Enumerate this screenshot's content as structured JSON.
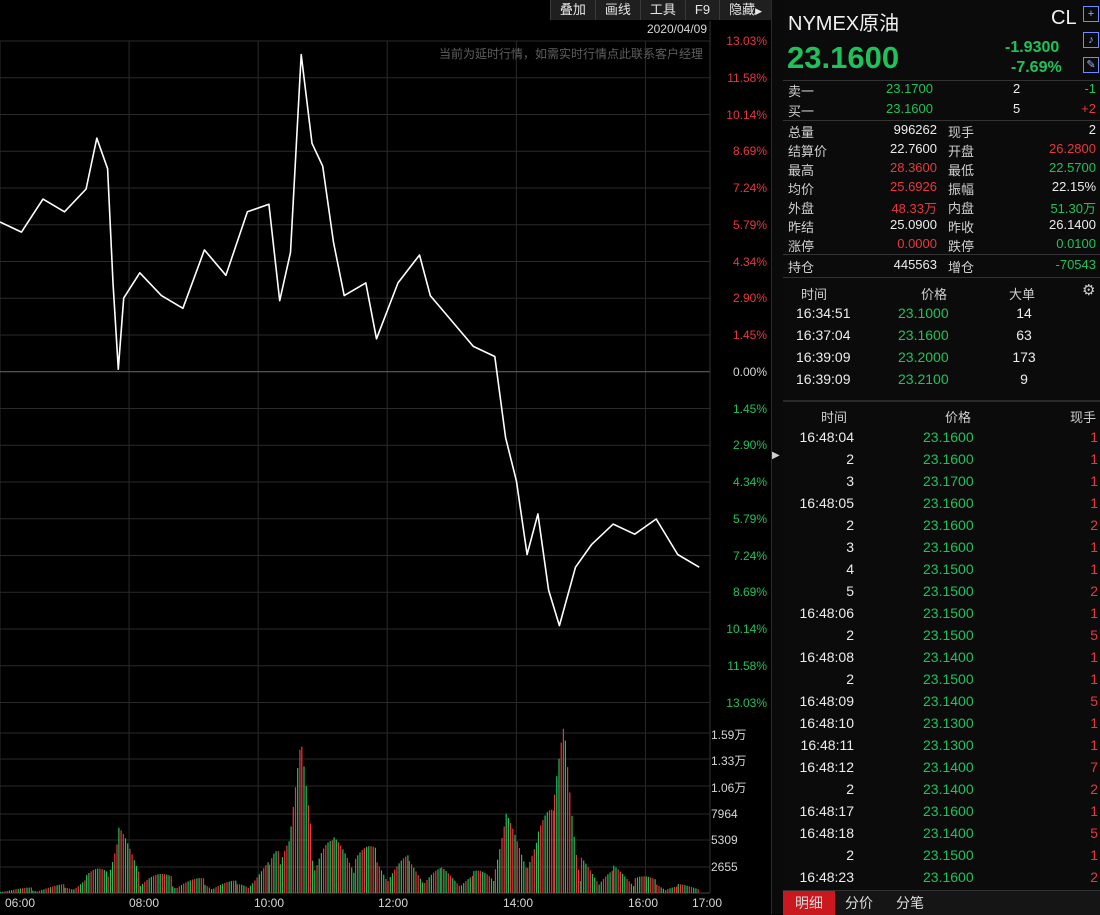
{
  "toolbar": {
    "overlay": "叠加",
    "draw": "画线",
    "tools": "工具",
    "f9": "F9",
    "hide": "隐藏"
  },
  "chart_header": {
    "date": "2020/04/09",
    "notice": "当前为延时行情，如需实时行情点此联系客户经理"
  },
  "price_axis": [
    {
      "label": "13.03%",
      "dir": "up"
    },
    {
      "label": "11.58%",
      "dir": "up"
    },
    {
      "label": "10.14%",
      "dir": "up"
    },
    {
      "label": "8.69%",
      "dir": "up"
    },
    {
      "label": "7.24%",
      "dir": "up"
    },
    {
      "label": "5.79%",
      "dir": "up"
    },
    {
      "label": "4.34%",
      "dir": "up"
    },
    {
      "label": "2.90%",
      "dir": "up"
    },
    {
      "label": "1.45%",
      "dir": "up"
    },
    {
      "label": "0.00%",
      "dir": "zero"
    },
    {
      "label": "1.45%",
      "dir": "dn"
    },
    {
      "label": "2.90%",
      "dir": "dn"
    },
    {
      "label": "4.34%",
      "dir": "dn"
    },
    {
      "label": "5.79%",
      "dir": "dn"
    },
    {
      "label": "7.24%",
      "dir": "dn"
    },
    {
      "label": "8.69%",
      "dir": "dn"
    },
    {
      "label": "10.14%",
      "dir": "dn"
    },
    {
      "label": "11.58%",
      "dir": "dn"
    },
    {
      "label": "13.03%",
      "dir": "dn"
    }
  ],
  "volume_axis": [
    "1.59万",
    "1.33万",
    "1.06万",
    "7964",
    "5309",
    "2655"
  ],
  "time_axis": [
    "06:00",
    "08:00",
    "10:00",
    "12:00",
    "14:00",
    "16:00",
    "17:00"
  ],
  "chart_data": {
    "type": "line",
    "x_unit": "time",
    "xlim": [
      "06:00",
      "17:00"
    ],
    "ylim_pct": [
      -13.03,
      13.03
    ],
    "prev_settle": 25.09,
    "price_change_pct": [
      {
        "x": "06:00",
        "y": 5.9
      },
      {
        "x": "06:20",
        "y": 5.5
      },
      {
        "x": "06:40",
        "y": 6.8
      },
      {
        "x": "07:00",
        "y": 6.3
      },
      {
        "x": "07:20",
        "y": 7.2
      },
      {
        "x": "07:30",
        "y": 9.2
      },
      {
        "x": "07:40",
        "y": 8.0
      },
      {
        "x": "07:45",
        "y": 3.5
      },
      {
        "x": "07:50",
        "y": 0.1
      },
      {
        "x": "07:55",
        "y": 2.9
      },
      {
        "x": "08:10",
        "y": 3.9
      },
      {
        "x": "08:30",
        "y": 3.0
      },
      {
        "x": "08:50",
        "y": 2.5
      },
      {
        "x": "09:10",
        "y": 4.8
      },
      {
        "x": "09:30",
        "y": 3.8
      },
      {
        "x": "09:50",
        "y": 6.3
      },
      {
        "x": "10:10",
        "y": 6.6
      },
      {
        "x": "10:20",
        "y": 2.8
      },
      {
        "x": "10:30",
        "y": 4.7
      },
      {
        "x": "10:40",
        "y": 12.5
      },
      {
        "x": "10:50",
        "y": 9.0
      },
      {
        "x": "11:00",
        "y": 8.1
      },
      {
        "x": "11:10",
        "y": 5.1
      },
      {
        "x": "11:20",
        "y": 3.0
      },
      {
        "x": "11:40",
        "y": 3.5
      },
      {
        "x": "11:50",
        "y": 1.3
      },
      {
        "x": "12:10",
        "y": 3.5
      },
      {
        "x": "12:30",
        "y": 4.6
      },
      {
        "x": "12:40",
        "y": 3.0
      },
      {
        "x": "13:00",
        "y": 2.0
      },
      {
        "x": "13:20",
        "y": 1.0
      },
      {
        "x": "13:40",
        "y": 0.6
      },
      {
        "x": "13:50",
        "y": -2.6
      },
      {
        "x": "14:00",
        "y": -4.3
      },
      {
        "x": "14:10",
        "y": -7.2
      },
      {
        "x": "14:20",
        "y": -5.6
      },
      {
        "x": "14:30",
        "y": -8.6
      },
      {
        "x": "14:40",
        "y": -10.0
      },
      {
        "x": "14:55",
        "y": -7.7
      },
      {
        "x": "15:10",
        "y": -6.8
      },
      {
        "x": "15:30",
        "y": -6.0
      },
      {
        "x": "15:50",
        "y": -6.4
      },
      {
        "x": "16:10",
        "y": -5.8
      },
      {
        "x": "16:30",
        "y": -7.2
      },
      {
        "x": "16:50",
        "y": -7.7
      }
    ],
    "volume": [
      {
        "x": "06:00",
        "v": 300
      },
      {
        "x": "06:30",
        "v": 500
      },
      {
        "x": "07:00",
        "v": 800
      },
      {
        "x": "07:20",
        "v": 1600
      },
      {
        "x": "07:40",
        "v": 3200
      },
      {
        "x": "07:50",
        "v": 6000
      },
      {
        "x": "08:10",
        "v": 2200
      },
      {
        "x": "08:40",
        "v": 1500
      },
      {
        "x": "09:10",
        "v": 1300
      },
      {
        "x": "09:40",
        "v": 1100
      },
      {
        "x": "10:10",
        "v": 3000
      },
      {
        "x": "10:20",
        "v": 8000
      },
      {
        "x": "10:30",
        "v": 6500
      },
      {
        "x": "10:40",
        "v": 14000
      },
      {
        "x": "10:50",
        "v": 8000
      },
      {
        "x": "11:10",
        "v": 5000
      },
      {
        "x": "11:30",
        "v": 4500
      },
      {
        "x": "11:50",
        "v": 4000
      },
      {
        "x": "12:20",
        "v": 3500
      },
      {
        "x": "12:50",
        "v": 2500
      },
      {
        "x": "13:20",
        "v": 2000
      },
      {
        "x": "13:40",
        "v": 3000
      },
      {
        "x": "13:50",
        "v": 7000
      },
      {
        "x": "14:10",
        "v": 4000
      },
      {
        "x": "14:20",
        "v": 5500
      },
      {
        "x": "14:35",
        "v": 9000
      },
      {
        "x": "14:45",
        "v": 16000
      },
      {
        "x": "15:00",
        "v": 3500
      },
      {
        "x": "15:30",
        "v": 2500
      },
      {
        "x": "15:50",
        "v": 1800
      },
      {
        "x": "16:10",
        "v": 1200
      },
      {
        "x": "16:30",
        "v": 800
      },
      {
        "x": "16:50",
        "v": 500
      }
    ]
  },
  "quote": {
    "name": "NYMEX原油",
    "code": "CL",
    "last": "23.1600",
    "change": "-1.9300",
    "change_pct": "-7.69%",
    "ask": {
      "label": "卖一",
      "price": "23.1700",
      "vol": "2",
      "delta": "-1"
    },
    "bid": {
      "label": "买一",
      "price": "23.1600",
      "vol": "5",
      "delta": "+2"
    },
    "stats": [
      {
        "l1": "总量",
        "v1": "996262",
        "c1": "white",
        "l2": "现手",
        "v2": "2",
        "c2": "white"
      },
      {
        "l1": "结算价",
        "v1": "22.7600",
        "c1": "white",
        "l2": "开盘",
        "v2": "26.2800",
        "c2": "red"
      },
      {
        "l1": "最高",
        "v1": "28.3600",
        "c1": "red",
        "l2": "最低",
        "v2": "22.5700",
        "c2": "green"
      },
      {
        "l1": "均价",
        "v1": "25.6926",
        "c1": "red",
        "l2": "振幅",
        "v2": "22.15%",
        "c2": "white"
      },
      {
        "l1": "外盘",
        "v1": "48.33万",
        "c1": "red",
        "l2": "内盘",
        "v2": "51.30万",
        "c2": "green"
      },
      {
        "l1": "昨结",
        "v1": "25.0900",
        "c1": "white",
        "l2": "昨收",
        "v2": "26.1400",
        "c2": "white"
      },
      {
        "l1": "涨停",
        "v1": "0.0000",
        "c1": "red",
        "l2": "跌停",
        "v2": "0.0100",
        "c2": "green"
      }
    ],
    "oi": {
      "l1": "持仓",
      "v1": "445563",
      "l2": "增仓",
      "v2": "-70543"
    }
  },
  "big_orders": {
    "headers": {
      "time": "时间",
      "price": "价格",
      "size": "大单"
    },
    "rows": [
      {
        "time": "16:34:51",
        "price": "23.1000",
        "size": "14"
      },
      {
        "time": "16:37:04",
        "price": "23.1600",
        "size": "63"
      },
      {
        "time": "16:39:09",
        "price": "23.2000",
        "size": "173"
      },
      {
        "time": "16:39:09",
        "price": "23.2100",
        "size": "9"
      }
    ]
  },
  "ticks": {
    "headers": {
      "time": "时间",
      "price": "价格",
      "qty": "现手"
    },
    "rows": [
      {
        "time": "16:48:04",
        "price": "23.1600",
        "qty": "1",
        "qc": "red"
      },
      {
        "time": "2",
        "price": "23.1600",
        "qty": "1",
        "qc": "red"
      },
      {
        "time": "3",
        "price": "23.1700",
        "qty": "1",
        "qc": "red"
      },
      {
        "time": "16:48:05",
        "price": "23.1600",
        "qty": "1",
        "qc": "red"
      },
      {
        "time": "2",
        "price": "23.1600",
        "qty": "2",
        "qc": "red"
      },
      {
        "time": "3",
        "price": "23.1600",
        "qty": "1",
        "qc": "red"
      },
      {
        "time": "4",
        "price": "23.1500",
        "qty": "1",
        "qc": "red"
      },
      {
        "time": "5",
        "price": "23.1500",
        "qty": "2",
        "qc": "red"
      },
      {
        "time": "16:48:06",
        "price": "23.1500",
        "qty": "1",
        "qc": "red"
      },
      {
        "time": "2",
        "price": "23.1500",
        "qty": "5",
        "qc": "red"
      },
      {
        "time": "16:48:08",
        "price": "23.1400",
        "qty": "1",
        "qc": "red"
      },
      {
        "time": "2",
        "price": "23.1500",
        "qty": "1",
        "qc": "red"
      },
      {
        "time": "16:48:09",
        "price": "23.1400",
        "qty": "5",
        "qc": "red"
      },
      {
        "time": "16:48:10",
        "price": "23.1300",
        "qty": "1",
        "qc": "red"
      },
      {
        "time": "16:48:11",
        "price": "23.1300",
        "qty": "1",
        "qc": "red"
      },
      {
        "time": "16:48:12",
        "price": "23.1400",
        "qty": "7",
        "qc": "red"
      },
      {
        "time": "2",
        "price": "23.1400",
        "qty": "2",
        "qc": "red"
      },
      {
        "time": "16:48:17",
        "price": "23.1600",
        "qty": "1",
        "qc": "red"
      },
      {
        "time": "16:48:18",
        "price": "23.1400",
        "qty": "5",
        "qc": "red"
      },
      {
        "time": "2",
        "price": "23.1500",
        "qty": "1",
        "qc": "red"
      },
      {
        "time": "16:48:23",
        "price": "23.1600",
        "qty": "2",
        "qc": "red"
      }
    ]
  },
  "bottom_tabs": [
    "明细",
    "分价",
    "分笔"
  ],
  "colors": {
    "up": "#e8373d",
    "down": "#1fc25a",
    "accent_tab": "#c9181e",
    "line": "#ffffff",
    "grid": "#2a2a2a"
  }
}
